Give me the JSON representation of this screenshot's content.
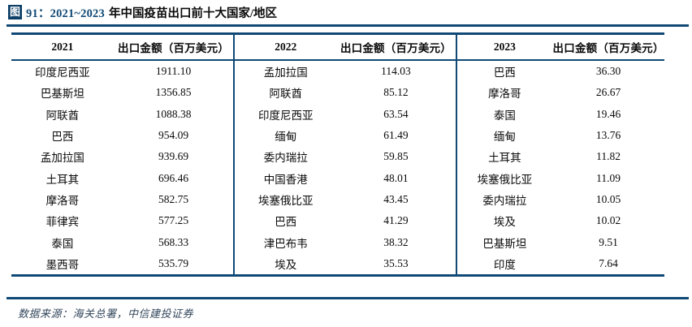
{
  "accent_color": "#104976",
  "title": {
    "fig_label": "图",
    "fig_number_years": "91：2021~2023",
    "title_rest": "年中国疫苗出口前十大国家/地区"
  },
  "table": {
    "amount_header": "出口金额（百万美元）",
    "sections": [
      {
        "year": "2021",
        "rows": [
          {
            "country": "印度尼西亚",
            "amount": "1911.10"
          },
          {
            "country": "巴基斯坦",
            "amount": "1356.85"
          },
          {
            "country": "阿联酋",
            "amount": "1088.38"
          },
          {
            "country": "巴西",
            "amount": "954.09"
          },
          {
            "country": "孟加拉国",
            "amount": "939.69"
          },
          {
            "country": "土耳其",
            "amount": "696.46"
          },
          {
            "country": "摩洛哥",
            "amount": "582.75"
          },
          {
            "country": "菲律宾",
            "amount": "577.25"
          },
          {
            "country": "泰国",
            "amount": "568.33"
          },
          {
            "country": "墨西哥",
            "amount": "535.79"
          }
        ]
      },
      {
        "year": "2022",
        "rows": [
          {
            "country": "孟加拉国",
            "amount": "114.03"
          },
          {
            "country": "阿联酋",
            "amount": "85.12"
          },
          {
            "country": "印度尼西亚",
            "amount": "63.54"
          },
          {
            "country": "缅甸",
            "amount": "61.49"
          },
          {
            "country": "委内瑞拉",
            "amount": "59.85"
          },
          {
            "country": "中国香港",
            "amount": "48.01"
          },
          {
            "country": "埃塞俄比亚",
            "amount": "43.45"
          },
          {
            "country": "巴西",
            "amount": "41.29"
          },
          {
            "country": "津巴布韦",
            "amount": "38.32"
          },
          {
            "country": "埃及",
            "amount": "35.53"
          }
        ]
      },
      {
        "year": "2023",
        "rows": [
          {
            "country": "巴西",
            "amount": "36.30"
          },
          {
            "country": "摩洛哥",
            "amount": "26.67"
          },
          {
            "country": "泰国",
            "amount": "19.46"
          },
          {
            "country": "缅甸",
            "amount": "13.76"
          },
          {
            "country": "土耳其",
            "amount": "11.82"
          },
          {
            "country": "埃塞俄比亚",
            "amount": "11.09"
          },
          {
            "country": "委内瑞拉",
            "amount": "10.05"
          },
          {
            "country": "埃及",
            "amount": "10.02"
          },
          {
            "country": "巴基斯坦",
            "amount": "9.51"
          },
          {
            "country": "印度",
            "amount": "7.64"
          }
        ]
      }
    ]
  },
  "source": "数据来源：海关总署，中信建投证券"
}
